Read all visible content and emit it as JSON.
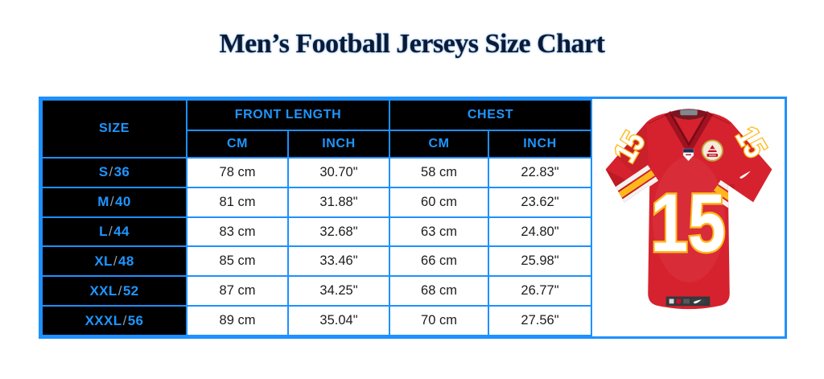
{
  "title": "Men’s Football Jerseys Size Chart",
  "colors": {
    "accent_blue": "#1E90FF",
    "header_background": "#000000",
    "title_navy": "#0b1b36",
    "jersey_red": "#D6222E",
    "jersey_gold": "#FFB81C"
  },
  "table": {
    "size_header": "SIZE",
    "group_headers": [
      "FRONT LENGTH",
      "CHEST"
    ],
    "sub_headers": [
      "CM",
      "INCH",
      "CM",
      "INCH"
    ],
    "rows": [
      {
        "size": "S/36",
        "front_cm": "78 cm",
        "front_inch": "30.70\"",
        "chest_cm": "58 cm",
        "chest_inch": "22.83\""
      },
      {
        "size": "M/40",
        "front_cm": "81 cm",
        "front_inch": "31.88\"",
        "chest_cm": "60 cm",
        "chest_inch": "23.62\""
      },
      {
        "size": "L/44",
        "front_cm": "83 cm",
        "front_inch": "32.68\"",
        "chest_cm": "63 cm",
        "chest_inch": "24.80\""
      },
      {
        "size": "XL/48",
        "front_cm": "85 cm",
        "front_inch": "33.46\"",
        "chest_cm": "66 cm",
        "chest_inch": "25.98\""
      },
      {
        "size": "XXL/52",
        "front_cm": "87 cm",
        "front_inch": "34.25\"",
        "chest_cm": "68 cm",
        "chest_inch": "26.77\""
      },
      {
        "size": "XXXL/56",
        "front_cm": "89 cm",
        "front_inch": "35.04\"",
        "chest_cm": "70 cm",
        "chest_inch": "27.56\""
      }
    ]
  },
  "jersey": {
    "number": "15"
  },
  "chart_data": {
    "type": "table",
    "title": "Men’s Football Jerseys Size Chart",
    "columns": [
      "SIZE",
      "FRONT LENGTH CM",
      "FRONT LENGTH INCH",
      "CHEST CM",
      "CHEST INCH"
    ],
    "rows": [
      [
        "S/36",
        "78 cm",
        "30.70\"",
        "58 cm",
        "22.83\""
      ],
      [
        "M/40",
        "81 cm",
        "31.88\"",
        "60 cm",
        "23.62\""
      ],
      [
        "L/44",
        "83 cm",
        "32.68\"",
        "63 cm",
        "24.80\""
      ],
      [
        "XL/48",
        "85 cm",
        "33.46\"",
        "66 cm",
        "25.98\""
      ],
      [
        "XXL/52",
        "87 cm",
        "34.25\"",
        "68 cm",
        "26.77\""
      ],
      [
        "XXXL/56",
        "89 cm",
        "35.04\"",
        "70 cm",
        "27.56\""
      ]
    ]
  }
}
